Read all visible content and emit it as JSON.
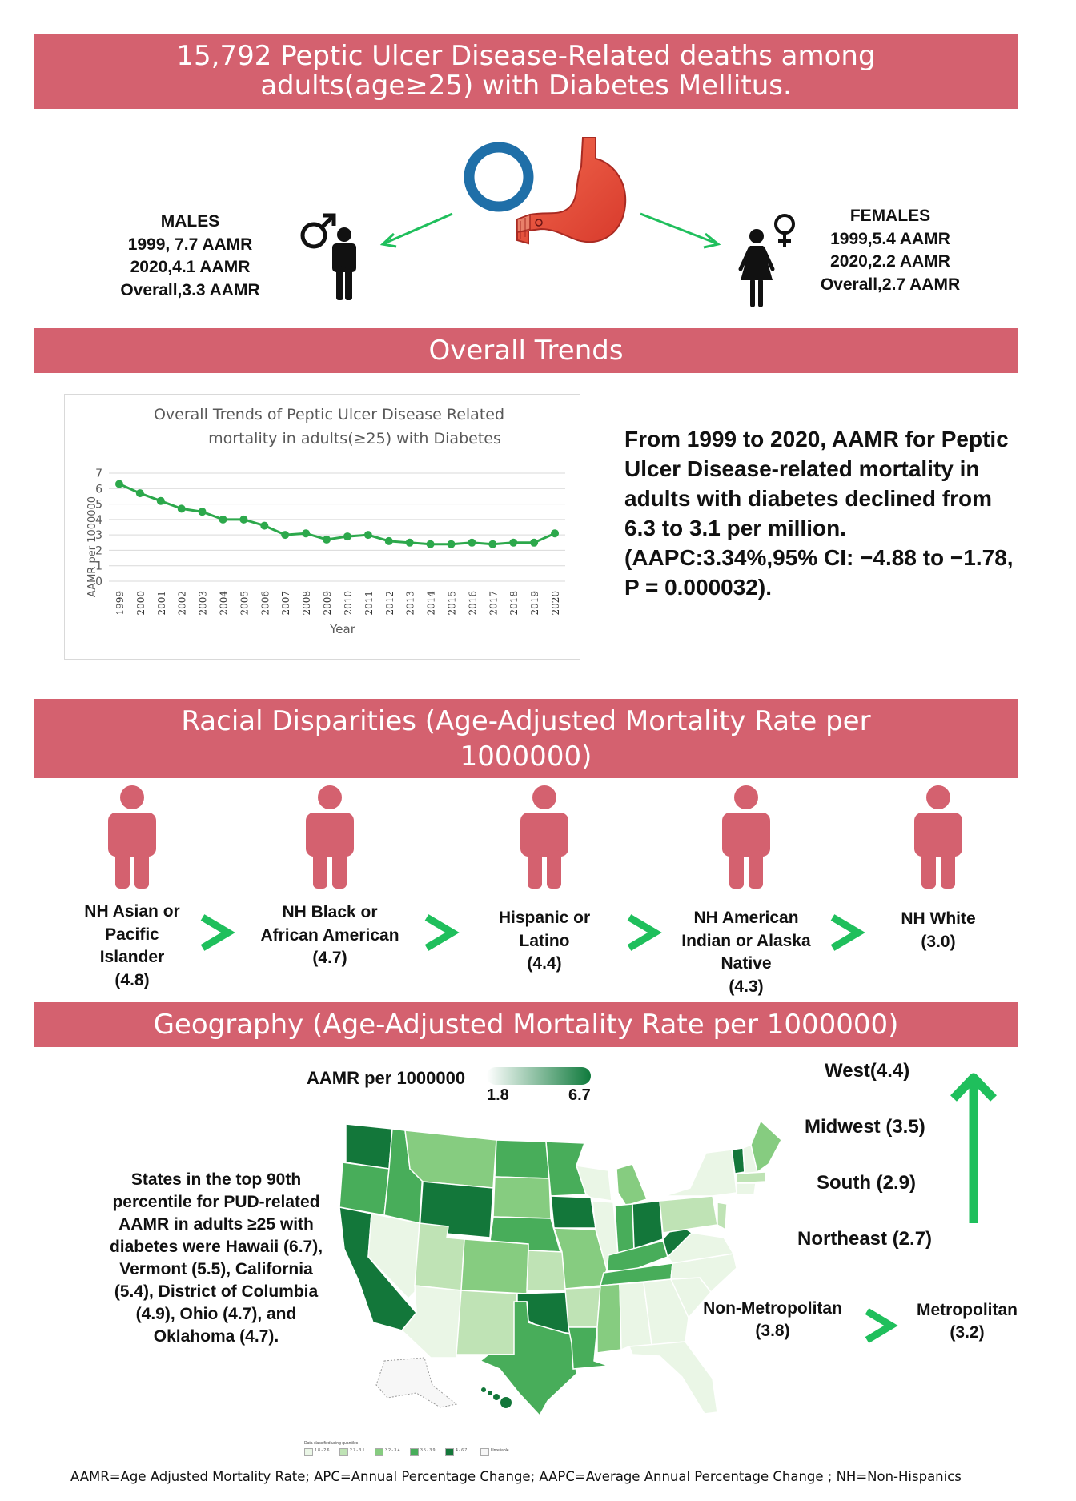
{
  "header": {
    "title_line1": "15,792 Peptic Ulcer Disease-Related deaths among",
    "title_line2": "adults(age≥25) with Diabetes Mellitus."
  },
  "males": {
    "heading": "MALES",
    "line1": "1999, 7.7 AAMR",
    "line2": "2020,4.1 AAMR",
    "line3": "Overall,3.3 AAMR"
  },
  "females": {
    "heading": "FEMALES",
    "line1": "1999,5.4 AAMR",
    "line2": "2020,2.2 AAMR",
    "line3": "Overall,2.7 AAMR"
  },
  "trends": {
    "banner": "Overall Trends",
    "summary": "From 1999 to 2020, AAMR for Peptic Ulcer Disease-related mortality in adults with diabetes declined from 6.3 to 3.1 per million. (AAPC:3.34%,95% CI: −4.88 to −1.78, P = 0.000032)."
  },
  "chart_data": {
    "type": "line",
    "title_line1": "Overall Trends of Peptic Ulcer Disease Related",
    "title_line2": "mortality in adults(≥25) with Diabetes",
    "xlabel": "Year",
    "ylabel": "AAMR per 1000000",
    "ylim": [
      0,
      7
    ],
    "yticks": [
      "0",
      "1",
      "2",
      "3",
      "4",
      "5",
      "6",
      "7"
    ],
    "grid": true,
    "color": "#2ca84b",
    "x": [
      "1999",
      "2000",
      "2001",
      "2002",
      "2003",
      "2004",
      "2005",
      "2006",
      "2007",
      "2008",
      "2009",
      "2010",
      "2011",
      "2012",
      "2013",
      "2014",
      "2015",
      "2016",
      "2017",
      "2018",
      "2019",
      "2020"
    ],
    "values": [
      6.3,
      5.7,
      5.2,
      4.7,
      4.5,
      4.0,
      4.0,
      3.6,
      3.0,
      3.1,
      2.7,
      2.9,
      3.0,
      2.6,
      2.5,
      2.4,
      2.4,
      2.5,
      2.4,
      2.5,
      2.5,
      3.1
    ]
  },
  "race": {
    "banner_line1": "Racial Disparities (Age-Adjusted Mortality Rate per",
    "banner_line2": "1000000)",
    "groups": [
      {
        "lines": [
          "NH Asian or",
          "Pacific",
          "Islander",
          "(4.8)"
        ]
      },
      {
        "lines": [
          "NH Black or",
          "African American",
          "(4.7)"
        ]
      },
      {
        "lines": [
          "Hispanic or",
          "Latino",
          "(4.4)"
        ]
      },
      {
        "lines": [
          "NH American",
          "Indian or Alaska",
          "Native",
          "(4.3)"
        ]
      },
      {
        "lines": [
          "NH White",
          "(3.0)"
        ]
      }
    ],
    "figure_color": "#d4616f",
    "arrow_color": "#1fbf5c"
  },
  "geo": {
    "banner": "Geography (Age-Adjusted Mortality Rate per 1000000)",
    "legend_title": "AAMR per 1000000",
    "legend_min": "1.8",
    "legend_max": "6.7",
    "states_text_lines": [
      "States in the top 90th",
      "percentile for PUD-related",
      "AAMR in adults ≥25 with",
      "diabetes were Hawaii (6.7),",
      "Vermont (5.5), California",
      "(5.4), District of Columbia",
      "(4.9), Ohio (4.7), and",
      "Oklahoma (4.7)."
    ],
    "regions": [
      "West(4.4)",
      "Midwest (3.5)",
      "South (2.9)",
      "Northeast (2.7)"
    ],
    "nonmetro_line1": "Non-Metropolitan",
    "nonmetro_line2": "(3.8)",
    "metro_line1": "Metropolitan",
    "metro_line2": "(3.2)",
    "map_legend_title": "Data classified using quantiles",
    "map_legend": [
      "1.8 - 2.6",
      "2.7 - 3.1",
      "3.2 - 3.4",
      "3.5 - 3.9",
      "4 - 6.7",
      "Unreliable"
    ],
    "map_legend_colors": [
      "#eaf6e6",
      "#bfe3b5",
      "#86cc80",
      "#48ad5a",
      "#13773a",
      "#f7f7f7"
    ]
  },
  "footer": "AAMR=Age Adjusted Mortality Rate; APC=Annual Percentage Change; AAPC=Average Annual Percentage Change ; NH=Non-Hispanics"
}
